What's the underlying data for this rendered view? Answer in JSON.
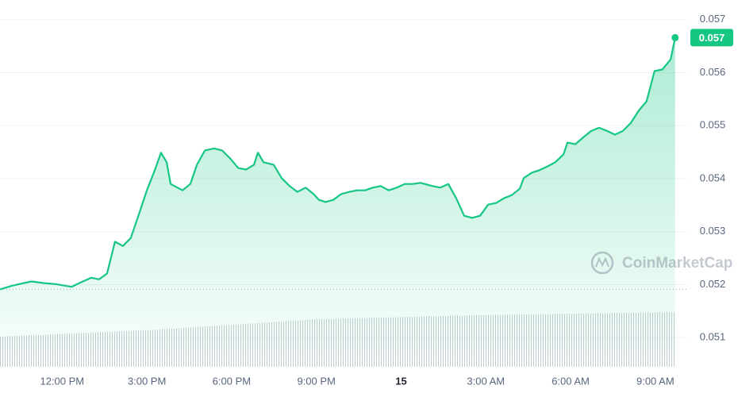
{
  "chart_data": {
    "type": "area",
    "x": [
      9.8,
      10.22,
      10.64,
      10.92,
      11.35,
      11.77,
      12.33,
      12.61,
      13.03,
      13.31,
      13.59,
      13.87,
      14.15,
      14.43,
      14.72,
      15.0,
      15.28,
      15.5,
      15.7,
      15.84,
      16.26,
      16.54,
      16.77,
      17.05,
      17.38,
      17.67,
      17.95,
      18.23,
      18.51,
      18.79,
      18.93,
      19.13,
      19.49,
      19.77,
      20.05,
      20.33,
      20.62,
      20.9,
      21.09,
      21.32,
      21.6,
      21.88,
      22.16,
      22.44,
      22.72,
      23.0,
      23.28,
      23.56,
      23.85,
      24.13,
      24.41,
      24.69,
      25.11,
      25.39,
      25.67,
      25.95,
      26.23,
      26.51,
      26.8,
      27.08,
      27.36,
      27.64,
      27.92,
      28.2,
      28.34,
      28.62,
      28.9,
      29.18,
      29.46,
      29.75,
      29.89,
      30.17,
      30.45,
      30.73,
      31.01,
      31.29,
      31.57,
      31.85,
      32.13,
      32.41,
      32.69,
      32.97,
      33.25,
      33.54,
      33.7
    ],
    "series": [
      {
        "color": "#16c784",
        "values": [
          0.05191,
          0.05198,
          0.05203,
          0.05206,
          0.05203,
          0.05201,
          0.05196,
          0.05203,
          0.05213,
          0.0521,
          0.05221,
          0.05281,
          0.05273,
          0.05288,
          0.05333,
          0.05378,
          0.05416,
          0.05449,
          0.05431,
          0.0539,
          0.05378,
          0.0539,
          0.05426,
          0.05453,
          0.05457,
          0.05453,
          0.05438,
          0.0542,
          0.05417,
          0.05426,
          0.05449,
          0.05431,
          0.05426,
          0.05401,
          0.05386,
          0.05375,
          0.05383,
          0.05371,
          0.0536,
          0.05356,
          0.0536,
          0.05371,
          0.05375,
          0.05378,
          0.05378,
          0.05383,
          0.05386,
          0.05378,
          0.05383,
          0.0539,
          0.0539,
          0.05392,
          0.05386,
          0.05383,
          0.0539,
          0.05363,
          0.0533,
          0.05326,
          0.0533,
          0.05351,
          0.05354,
          0.05363,
          0.05369,
          0.05381,
          0.05401,
          0.05411,
          0.05416,
          0.05423,
          0.05431,
          0.05446,
          0.05468,
          0.05465,
          0.05478,
          0.0549,
          0.05496,
          0.0549,
          0.05483,
          0.0549,
          0.05505,
          0.05528,
          0.05546,
          0.05603,
          0.05606,
          0.05625,
          0.05666
        ]
      }
    ],
    "last_label": "0.057",
    "watermark": "CoinMarketCap",
    "xlim": [
      9.8,
      34.1
    ],
    "xticks": [
      {
        "value": 12,
        "label": "12:00 PM"
      },
      {
        "value": 15,
        "label": "3:00 PM"
      },
      {
        "value": 18,
        "label": "6:00 PM"
      },
      {
        "value": 21,
        "label": "9:00 PM"
      },
      {
        "value": 24,
        "label": "15"
      },
      {
        "value": 27,
        "label": "3:00 AM"
      },
      {
        "value": 30,
        "label": "6:00 AM"
      },
      {
        "value": 33,
        "label": "9:00 AM"
      }
    ],
    "ylim": [
      0.05045,
      0.05737
    ],
    "yticks": [
      0.051,
      0.052,
      0.053,
      0.054,
      0.055,
      0.056,
      0.057
    ],
    "grid": true
  }
}
